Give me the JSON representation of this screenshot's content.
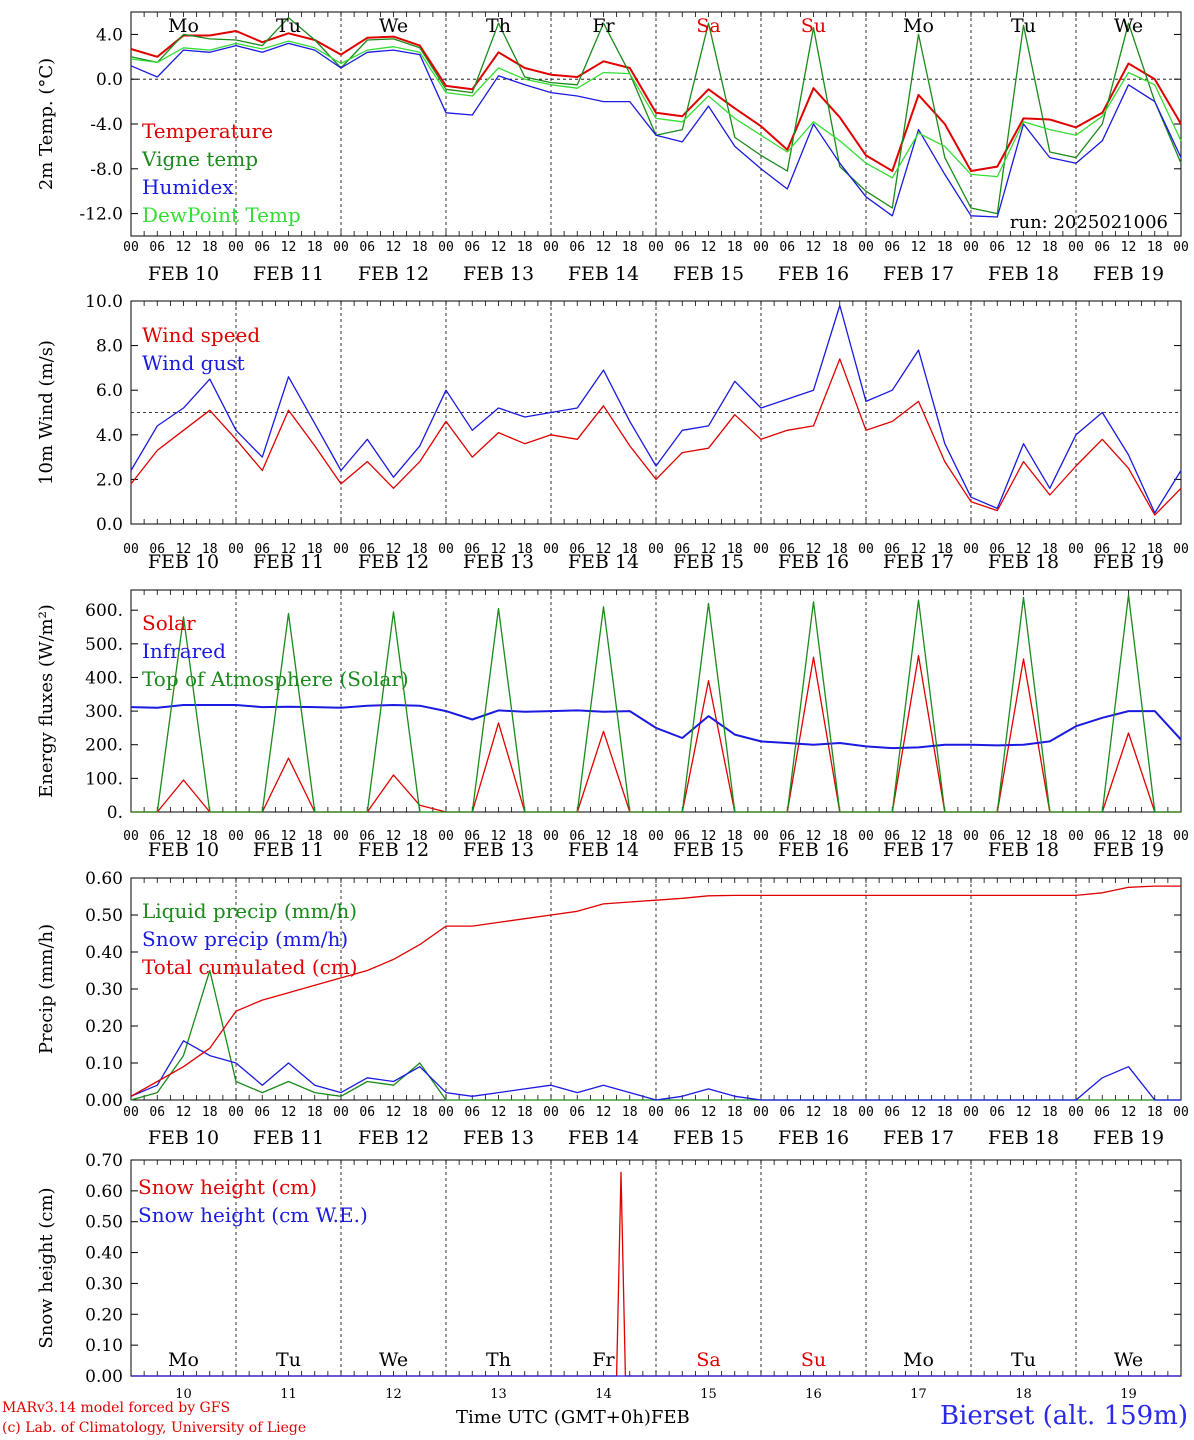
{
  "footer": {
    "model": "MARv3.14 model forced by GFS",
    "lab": "(c) Lab. of Climatology, University of Liege",
    "time_axis": "Time UTC (GMT+0h)",
    "month": "FEB",
    "station": "Bierset (alt. 159m)"
  },
  "colors": {
    "red": "#e00000",
    "green": "#1a8a1a",
    "blue": "#1a1ae0",
    "lightgreen": "#33dd33"
  },
  "days": {
    "weekday": [
      "Mo",
      "Tu",
      "We",
      "Th",
      "Fr",
      "Sa",
      "Su",
      "Mo",
      "Tu",
      "We"
    ],
    "weekend": [
      false,
      false,
      false,
      false,
      false,
      true,
      true,
      false,
      false,
      false
    ],
    "dates": [
      "FEB 10",
      "FEB 11",
      "FEB 12",
      "FEB 13",
      "FEB 14",
      "FEB 15",
      "FEB 16",
      "FEB 17",
      "FEB 18",
      "FEB 19"
    ],
    "day_numbers": [
      "10",
      "11",
      "12",
      "13",
      "14",
      "15",
      "16",
      "17",
      "18",
      "19"
    ],
    "hour_ticks": [
      "00",
      "06",
      "12",
      "18"
    ],
    "final_tick": "00"
  },
  "chart_data": [
    {
      "type": "line",
      "panel": "temperature",
      "ylabel": "2m Temp. (°C)",
      "ylim": [
        -14,
        6
      ],
      "yticks": [
        "4.0",
        "0.0",
        "-4.0",
        "-8.0",
        "-12.0"
      ],
      "ytick_values": [
        4,
        0,
        -4,
        -8,
        -12
      ],
      "reference_line": 0,
      "annotation": "run: 2025021006",
      "x_hours": [
        0,
        6,
        12,
        18,
        24,
        30,
        36,
        42,
        48,
        54,
        60,
        66,
        72,
        78,
        84,
        90,
        96,
        102,
        108,
        114,
        120,
        126,
        132,
        138,
        144,
        150,
        156,
        162,
        168,
        174,
        180,
        186,
        192,
        198,
        204,
        210,
        216,
        222,
        228,
        234,
        240
      ],
      "series": [
        {
          "name": "Temperature",
          "color": "red",
          "values": [
            2.7,
            2.0,
            3.9,
            3.9,
            4.3,
            3.3,
            4.1,
            3.5,
            2.2,
            3.7,
            3.8,
            3.0,
            -0.6,
            -0.9,
            2.4,
            1.0,
            0.4,
            0.2,
            1.6,
            1.0,
            -3.0,
            -3.3,
            -0.9,
            -2.6,
            -4.2,
            -6.3,
            -0.8,
            -3.4,
            -6.8,
            -8.2,
            -1.4,
            -4.0,
            -8.2,
            -7.8,
            -3.5,
            -3.6,
            -4.3,
            -3.0,
            1.4,
            0.0,
            -4.0
          ]
        },
        {
          "name": "Vigne temp",
          "color": "green",
          "values": [
            2.0,
            1.5,
            4.0,
            3.6,
            3.5,
            3.0,
            5.5,
            3.5,
            1.0,
            3.5,
            3.6,
            2.8,
            -0.9,
            -1.2,
            5.0,
            0.2,
            -0.3,
            -0.5,
            5.0,
            0.5,
            -5.0,
            -4.5,
            5.0,
            -5.2,
            -6.8,
            -8.2,
            4.6,
            -7.8,
            -10.0,
            -11.5,
            4.0,
            -7.0,
            -11.5,
            -12.0,
            4.8,
            -6.5,
            -7.0,
            -4.0,
            5.0,
            -2.0,
            -7.5
          ]
        },
        {
          "name": "Humidex",
          "color": "blue",
          "values": [
            1.2,
            0.2,
            2.6,
            2.4,
            3.0,
            2.4,
            3.2,
            2.6,
            1.0,
            2.4,
            2.6,
            2.2,
            -3.0,
            -3.2,
            0.3,
            -0.5,
            -1.2,
            -1.5,
            -2.0,
            -2.0,
            -5.0,
            -5.6,
            -2.4,
            -6.0,
            -8.0,
            -9.8,
            -4.0,
            -7.5,
            -10.5,
            -12.2,
            -4.5,
            -8.5,
            -12.2,
            -12.3,
            -4.0,
            -7.0,
            -7.5,
            -5.5,
            -0.5,
            -2.0,
            -7.0
          ]
        },
        {
          "name": "DewPoint Temp",
          "color": "lightgreen",
          "values": [
            1.8,
            1.5,
            2.8,
            2.6,
            3.2,
            2.7,
            3.4,
            2.8,
            1.4,
            2.6,
            2.9,
            2.4,
            -1.2,
            -1.5,
            1.0,
            0.0,
            -0.5,
            -0.8,
            0.6,
            0.5,
            -3.5,
            -3.8,
            -1.5,
            -3.5,
            -5.0,
            -6.5,
            -3.8,
            -5.5,
            -7.5,
            -8.8,
            -4.8,
            -6.0,
            -8.5,
            -8.7,
            -3.8,
            -4.5,
            -5.0,
            -3.3,
            0.6,
            -0.5,
            -5.5
          ]
        }
      ]
    },
    {
      "type": "line",
      "panel": "wind",
      "ylabel": "10m Wind (m/s)",
      "ylim": [
        0,
        10
      ],
      "yticks": [
        "0.0",
        "2.0",
        "4.0",
        "6.0",
        "8.0",
        "10.0"
      ],
      "ytick_values": [
        0,
        2,
        4,
        6,
        8,
        10
      ],
      "reference_line": 5,
      "x_hours": [
        0,
        6,
        12,
        18,
        24,
        30,
        36,
        42,
        48,
        54,
        60,
        66,
        72,
        78,
        84,
        90,
        96,
        102,
        108,
        114,
        120,
        126,
        132,
        138,
        144,
        150,
        156,
        162,
        168,
        174,
        180,
        186,
        192,
        198,
        204,
        210,
        216,
        222,
        228,
        234,
        240
      ],
      "series": [
        {
          "name": "Wind speed",
          "color": "red",
          "values": [
            1.8,
            3.3,
            4.2,
            5.1,
            3.8,
            2.4,
            5.1,
            3.5,
            1.8,
            2.8,
            1.6,
            2.8,
            4.6,
            3.0,
            4.1,
            3.6,
            4.0,
            3.8,
            5.3,
            3.5,
            2.0,
            3.2,
            3.4,
            4.9,
            3.8,
            4.2,
            4.4,
            7.4,
            4.2,
            4.6,
            5.5,
            2.8,
            1.0,
            0.6,
            2.8,
            1.3,
            2.6,
            3.8,
            2.5,
            0.4,
            1.6
          ]
        },
        {
          "name": "Wind gust",
          "color": "blue",
          "values": [
            2.4,
            4.4,
            5.2,
            6.5,
            4.2,
            3.0,
            6.6,
            4.5,
            2.4,
            3.8,
            2.1,
            3.5,
            6.0,
            4.2,
            5.2,
            4.8,
            5.0,
            5.2,
            6.9,
            4.6,
            2.6,
            4.2,
            4.4,
            6.4,
            5.2,
            5.6,
            6.0,
            9.8,
            5.5,
            6.0,
            7.8,
            3.6,
            1.2,
            0.7,
            3.6,
            1.6,
            4.0,
            5.0,
            3.1,
            0.5,
            2.4
          ]
        }
      ]
    },
    {
      "type": "line",
      "panel": "energy",
      "ylabel": "Energy fluxes (W/m²)",
      "ylim": [
        0,
        660
      ],
      "yticks": [
        "0.",
        "100.",
        "200.",
        "300.",
        "400.",
        "500.",
        "600."
      ],
      "ytick_values": [
        0,
        100,
        200,
        300,
        400,
        500,
        600
      ],
      "x_hours": [
        0,
        6,
        12,
        18,
        24,
        30,
        36,
        42,
        48,
        54,
        60,
        66,
        72,
        78,
        84,
        90,
        96,
        102,
        108,
        114,
        120,
        126,
        132,
        138,
        144,
        150,
        156,
        162,
        168,
        174,
        180,
        186,
        192,
        198,
        204,
        210,
        216,
        222,
        228,
        234,
        240
      ],
      "series": [
        {
          "name": "Solar",
          "color": "red",
          "values": [
            0,
            0,
            95,
            0,
            0,
            0,
            160,
            0,
            0,
            0,
            110,
            20,
            0,
            0,
            265,
            0,
            0,
            0,
            240,
            0,
            0,
            0,
            390,
            0,
            0,
            0,
            460,
            0,
            0,
            0,
            465,
            0,
            0,
            0,
            455,
            0,
            0,
            0,
            235,
            0,
            0
          ]
        },
        {
          "name": "Infrared",
          "color": "blue",
          "values": [
            312,
            310,
            318,
            318,
            318,
            312,
            313,
            312,
            310,
            316,
            318,
            316,
            300,
            275,
            302,
            298,
            300,
            302,
            298,
            300,
            250,
            220,
            285,
            230,
            210,
            205,
            200,
            205,
            195,
            190,
            192,
            200,
            200,
            198,
            200,
            210,
            255,
            280,
            300,
            300,
            215
          ]
        },
        {
          "name": "Top of Atmosphere (Solar)",
          "color": "green",
          "values": [
            0,
            0,
            580,
            0,
            0,
            0,
            590,
            0,
            0,
            0,
            595,
            0,
            0,
            0,
            605,
            0,
            0,
            0,
            610,
            0,
            0,
            0,
            620,
            0,
            0,
            0,
            625,
            0,
            0,
            0,
            630,
            0,
            0,
            0,
            638,
            0,
            0,
            0,
            645,
            0,
            0
          ]
        }
      ]
    },
    {
      "type": "line",
      "panel": "precip",
      "ylabel": "Precip (mm/h)",
      "ylim": [
        0,
        0.6
      ],
      "yticks": [
        "0.00",
        "0.10",
        "0.20",
        "0.30",
        "0.40",
        "0.50",
        "0.60"
      ],
      "ytick_values": [
        0,
        0.1,
        0.2,
        0.3,
        0.4,
        0.5,
        0.6
      ],
      "x_hours": [
        0,
        6,
        12,
        18,
        24,
        30,
        36,
        42,
        48,
        54,
        60,
        66,
        72,
        78,
        84,
        90,
        96,
        102,
        108,
        114,
        120,
        126,
        132,
        138,
        144,
        150,
        156,
        162,
        168,
        174,
        180,
        186,
        192,
        198,
        204,
        210,
        216,
        222,
        228,
        234,
        240
      ],
      "series": [
        {
          "name": "Liquid precip (mm/h)",
          "color": "green",
          "values": [
            0,
            0.02,
            0.12,
            0.35,
            0.05,
            0.02,
            0.05,
            0.02,
            0.01,
            0.05,
            0.04,
            0.1,
            0,
            0,
            0,
            0,
            0,
            0,
            0,
            0,
            0,
            0,
            0,
            0,
            0,
            0,
            0,
            0,
            0,
            0,
            0,
            0,
            0,
            0,
            0,
            0,
            0,
            0,
            0,
            0,
            0
          ]
        },
        {
          "name": "Snow precip (mm/h)",
          "color": "blue",
          "values": [
            0.01,
            0.04,
            0.16,
            0.12,
            0.1,
            0.04,
            0.1,
            0.04,
            0.02,
            0.06,
            0.05,
            0.09,
            0.02,
            0.01,
            0.02,
            0.03,
            0.04,
            0.02,
            0.04,
            0.02,
            0,
            0.01,
            0.03,
            0.01,
            0,
            0,
            0,
            0,
            0,
            0,
            0,
            0,
            0,
            0,
            0,
            0,
            0,
            0.06,
            0.09,
            0,
            0
          ]
        },
        {
          "name": "Total cumulated (cm)",
          "color": "red",
          "values": [
            0.01,
            0.05,
            0.09,
            0.14,
            0.24,
            0.27,
            0.29,
            0.31,
            0.33,
            0.35,
            0.38,
            0.42,
            0.47,
            0.47,
            0.48,
            0.49,
            0.5,
            0.51,
            0.53,
            0.535,
            0.54,
            0.545,
            0.552,
            0.553,
            0.553,
            0.553,
            0.553,
            0.553,
            0.553,
            0.553,
            0.553,
            0.553,
            0.553,
            0.553,
            0.553,
            0.553,
            0.553,
            0.56,
            0.575,
            0.578,
            0.578
          ]
        }
      ]
    },
    {
      "type": "line",
      "panel": "snow",
      "ylabel": "Snow height (cm)",
      "ylim": [
        0,
        0.7
      ],
      "yticks": [
        "0.00",
        "0.10",
        "0.20",
        "0.30",
        "0.40",
        "0.50",
        "0.60",
        "0.70"
      ],
      "ytick_values": [
        0,
        0.1,
        0.2,
        0.3,
        0.4,
        0.5,
        0.6,
        0.7
      ],
      "x_hours": [
        0,
        111,
        112,
        113,
        240
      ],
      "series": [
        {
          "name": "Snow height (cm)",
          "color": "red",
          "values": [
            0,
            0,
            0.66,
            0,
            0
          ]
        },
        {
          "name": "Snow height (cm W.E.)",
          "color": "blue",
          "values": [
            0,
            0,
            0,
            0,
            0
          ]
        }
      ]
    }
  ]
}
